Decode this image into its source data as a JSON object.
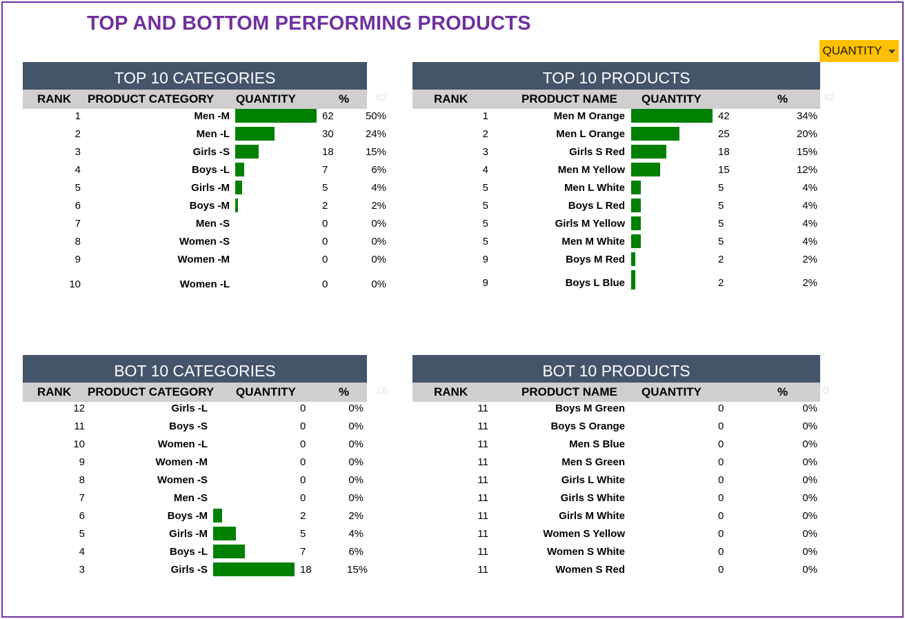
{
  "title": "TOP AND BOTTOM PERFORMING PRODUCTS",
  "dropdown": {
    "label": "QUANTITY"
  },
  "colors": {
    "title": "#7030a0",
    "header": "#44546a",
    "subheader": "#d0cece",
    "bar": "#008000",
    "dropdown": "#ffc000"
  },
  "panels": [
    {
      "title": "TOP 10 CATEGORIES",
      "headers": [
        "RANK",
        "PRODUCT CATEGORY",
        "QUANTITY",
        "%"
      ],
      "max_label": "62",
      "max": 62,
      "rows": [
        {
          "rank": "1",
          "name": "Men -M",
          "qty": "62",
          "pct": "50%",
          "value": 62
        },
        {
          "rank": "2",
          "name": "Men -L",
          "qty": "30",
          "pct": "24%",
          "value": 30
        },
        {
          "rank": "3",
          "name": "Girls -S",
          "qty": "18",
          "pct": "15%",
          "value": 18
        },
        {
          "rank": "4",
          "name": "Boys -L",
          "qty": "7",
          "pct": "6%",
          "value": 7
        },
        {
          "rank": "5",
          "name": "Girls -M",
          "qty": "5",
          "pct": "4%",
          "value": 5
        },
        {
          "rank": "6",
          "name": "Boys -M",
          "qty": "2",
          "pct": "2%",
          "value": 2
        },
        {
          "rank": "7",
          "name": "Men -S",
          "qty": "0",
          "pct": "0%",
          "value": 0
        },
        {
          "rank": "8",
          "name": "Women -S",
          "qty": "0",
          "pct": "0%",
          "value": 0
        },
        {
          "rank": "9",
          "name": "Women -M",
          "qty": "0",
          "pct": "0%",
          "value": 0
        },
        {
          "rank": "10",
          "name": "Women -L",
          "qty": "0",
          "pct": "0%",
          "value": 0
        }
      ]
    },
    {
      "title": "TOP 10 PRODUCTS",
      "headers": [
        "RANK",
        "PRODUCT NAME",
        "QUANTITY",
        "%"
      ],
      "max_label": "42",
      "max": 42,
      "rows": [
        {
          "rank": "1",
          "name": "Men M Orange",
          "qty": "42",
          "pct": "34%",
          "value": 42
        },
        {
          "rank": "2",
          "name": "Men L Orange",
          "qty": "25",
          "pct": "20%",
          "value": 25
        },
        {
          "rank": "3",
          "name": "Girls S Red",
          "qty": "18",
          "pct": "15%",
          "value": 18
        },
        {
          "rank": "4",
          "name": "Men M Yellow",
          "qty": "15",
          "pct": "12%",
          "value": 15
        },
        {
          "rank": "5",
          "name": "Men L White",
          "qty": "5",
          "pct": "4%",
          "value": 5
        },
        {
          "rank": "5",
          "name": "Boys L Red",
          "qty": "5",
          "pct": "4%",
          "value": 5
        },
        {
          "rank": "5",
          "name": "Girls M Yellow",
          "qty": "5",
          "pct": "4%",
          "value": 5
        },
        {
          "rank": "5",
          "name": "Men M White",
          "qty": "5",
          "pct": "4%",
          "value": 5
        },
        {
          "rank": "9",
          "name": "Boys M Red",
          "qty": "2",
          "pct": "2%",
          "value": 2
        },
        {
          "rank": "9",
          "name": "Boys L Blue",
          "qty": "2",
          "pct": "2%",
          "value": 2
        }
      ]
    },
    {
      "title": "BOT 10 CATEGORIES",
      "headers": [
        "RANK",
        "PRODUCT CATEGORY",
        "QUANTITY",
        "%"
      ],
      "max_label": "18",
      "max": 18,
      "rows": [
        {
          "rank": "12",
          "name": "Girls -L",
          "qty": "0",
          "pct": "0%",
          "value": 0
        },
        {
          "rank": "11",
          "name": "Boys -S",
          "qty": "0",
          "pct": "0%",
          "value": 0
        },
        {
          "rank": "10",
          "name": "Women -L",
          "qty": "0",
          "pct": "0%",
          "value": 0
        },
        {
          "rank": "9",
          "name": "Women -M",
          "qty": "0",
          "pct": "0%",
          "value": 0
        },
        {
          "rank": "8",
          "name": "Women -S",
          "qty": "0",
          "pct": "0%",
          "value": 0
        },
        {
          "rank": "7",
          "name": "Men -S",
          "qty": "0",
          "pct": "0%",
          "value": 0
        },
        {
          "rank": "6",
          "name": "Boys -M",
          "qty": "2",
          "pct": "2%",
          "value": 2
        },
        {
          "rank": "5",
          "name": "Girls -M",
          "qty": "5",
          "pct": "4%",
          "value": 5
        },
        {
          "rank": "4",
          "name": "Boys -L",
          "qty": "7",
          "pct": "6%",
          "value": 7
        },
        {
          "rank": "3",
          "name": "Girls -S",
          "qty": "18",
          "pct": "15%",
          "value": 18
        }
      ]
    },
    {
      "title": "BOT 10 PRODUCTS",
      "headers": [
        "RANK",
        "PRODUCT NAME",
        "QUANTITY",
        "%"
      ],
      "max_label": "0",
      "max": 0,
      "rows": [
        {
          "rank": "11",
          "name": "Boys M Green",
          "qty": "0",
          "pct": "0%",
          "value": 0
        },
        {
          "rank": "11",
          "name": "Boys S Orange",
          "qty": "0",
          "pct": "0%",
          "value": 0
        },
        {
          "rank": "11",
          "name": "Men S Blue",
          "qty": "0",
          "pct": "0%",
          "value": 0
        },
        {
          "rank": "11",
          "name": "Men S Green",
          "qty": "0",
          "pct": "0%",
          "value": 0
        },
        {
          "rank": "11",
          "name": "Girls L White",
          "qty": "0",
          "pct": "0%",
          "value": 0
        },
        {
          "rank": "11",
          "name": "Girls S White",
          "qty": "0",
          "pct": "0%",
          "value": 0
        },
        {
          "rank": "11",
          "name": "Girls M White",
          "qty": "0",
          "pct": "0%",
          "value": 0
        },
        {
          "rank": "11",
          "name": "Women S Yellow",
          "qty": "0",
          "pct": "0%",
          "value": 0
        },
        {
          "rank": "11",
          "name": "Women S White",
          "qty": "0",
          "pct": "0%",
          "value": 0
        },
        {
          "rank": "11",
          "name": "Women S Red",
          "qty": "0",
          "pct": "0%",
          "value": 0
        }
      ]
    }
  ]
}
